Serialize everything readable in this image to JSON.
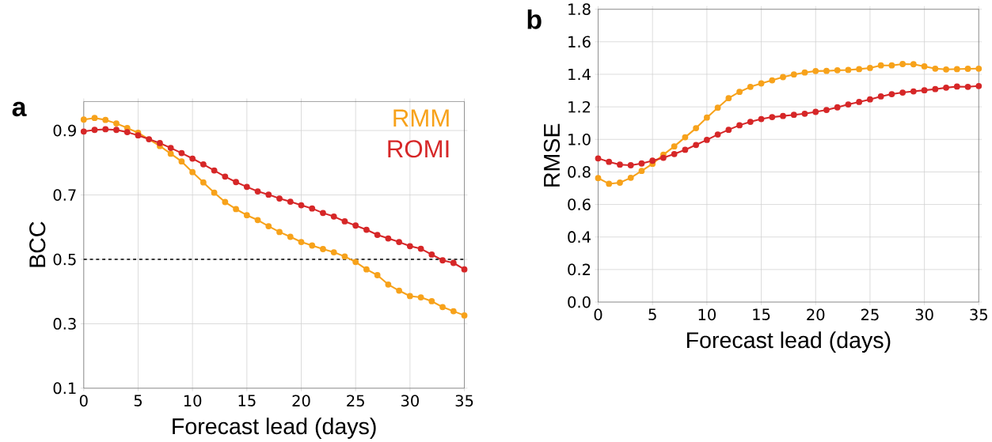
{
  "chart_data": [
    {
      "type": "line",
      "title": "a",
      "xlabel": "Forecast lead (days)",
      "ylabel": "BCC",
      "x": [
        0,
        1,
        2,
        3,
        4,
        5,
        6,
        7,
        8,
        9,
        10,
        11,
        12,
        13,
        14,
        15,
        16,
        17,
        18,
        19,
        20,
        21,
        22,
        23,
        24,
        25,
        26,
        27,
        28,
        29,
        30,
        31,
        32,
        33,
        34,
        35
      ],
      "series": [
        {
          "name": "RMM",
          "color": "#f7a21b",
          "values": [
            0.934,
            0.939,
            0.933,
            0.922,
            0.908,
            0.893,
            null,
            0.852,
            0.828,
            0.804,
            0.771,
            0.739,
            0.707,
            0.678,
            0.656,
            0.637,
            0.622,
            0.603,
            0.585,
            0.57,
            0.554,
            0.543,
            0.532,
            0.522,
            0.509,
            0.492,
            0.469,
            0.451,
            0.422,
            0.403,
            0.386,
            0.382,
            0.37,
            0.352,
            0.339,
            0.326
          ]
        },
        {
          "name": "ROMI",
          "color": "#d62728",
          "values": [
            0.897,
            0.902,
            0.904,
            0.902,
            0.895,
            0.885,
            0.873,
            0.861,
            0.846,
            0.83,
            0.813,
            0.795,
            0.776,
            0.757,
            0.74,
            0.725,
            0.711,
            0.701,
            0.689,
            0.679,
            0.668,
            0.658,
            0.644,
            0.633,
            0.618,
            0.605,
            0.592,
            0.576,
            0.565,
            0.554,
            0.541,
            0.533,
            0.515,
            0.497,
            0.489,
            0.469
          ]
        }
      ],
      "xlim": [
        0,
        35
      ],
      "ylim": [
        0.1,
        0.99
      ],
      "xticks": [
        0,
        5,
        10,
        15,
        20,
        25,
        30,
        35
      ],
      "yticks": [
        0.1,
        0.3,
        0.5,
        0.7,
        0.9
      ],
      "ref_lines": [
        {
          "axis": "y",
          "value": 0.5,
          "color": "#000000",
          "line_style": "dashed"
        }
      ],
      "grid": true,
      "legend": "top right",
      "marker": "circle",
      "line_style": "solid"
    },
    {
      "type": "line",
      "title": "b",
      "xlabel": "Forecast lead (days)",
      "ylabel": "RMSE",
      "x": [
        0,
        1,
        2,
        3,
        4,
        5,
        6,
        7,
        8,
        9,
        10,
        11,
        12,
        13,
        14,
        15,
        16,
        17,
        18,
        19,
        20,
        21,
        22,
        23,
        24,
        25,
        26,
        27,
        28,
        29,
        30,
        31,
        32,
        33,
        34,
        35
      ],
      "series": [
        {
          "color": "#f7a21b",
          "values": [
            0.762,
            0.727,
            0.734,
            0.764,
            0.806,
            0.85,
            0.906,
            0.957,
            1.013,
            1.069,
            1.134,
            1.195,
            1.253,
            1.292,
            1.323,
            1.344,
            1.363,
            1.383,
            1.399,
            1.411,
            1.42,
            1.421,
            1.425,
            1.427,
            1.432,
            1.439,
            1.455,
            1.455,
            1.463,
            1.462,
            1.449,
            1.435,
            1.43,
            1.432,
            1.434,
            1.435
          ]
        },
        {
          "color": "#d62728",
          "values": [
            0.883,
            0.862,
            0.845,
            0.841,
            0.852,
            0.869,
            0.887,
            0.91,
            0.936,
            0.966,
            0.997,
            1.03,
            1.059,
            1.087,
            1.108,
            1.125,
            1.137,
            1.144,
            1.151,
            1.158,
            1.169,
            1.181,
            1.197,
            1.215,
            1.23,
            1.246,
            1.264,
            1.278,
            1.288,
            1.295,
            1.302,
            1.309,
            1.318,
            1.325,
            1.323,
            1.328
          ]
        }
      ],
      "xlim": [
        0,
        35
      ],
      "ylim": [
        0,
        1.8
      ],
      "xticks": [
        0,
        5,
        10,
        15,
        20,
        25,
        30,
        35
      ],
      "yticks": [
        {
          "value": 0,
          "label": "0.0"
        },
        0.2,
        0.4,
        0.6,
        0.8,
        {
          "value": 1,
          "label": "1.0"
        },
        1.2,
        1.4,
        1.6,
        1.8
      ],
      "grid": true,
      "marker": "circle",
      "line_style": "solid"
    }
  ]
}
